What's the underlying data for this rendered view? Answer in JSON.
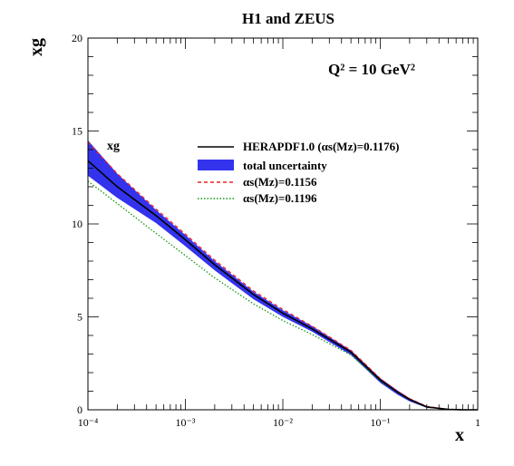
{
  "chart_data": {
    "type": "line",
    "title": "H1 and ZEUS",
    "annotation": "Q² = 10 GeV²",
    "curve_label": "xg",
    "xlabel": "x",
    "ylabel": "xg",
    "x_scale": "log",
    "xlim": [
      0.0001,
      1
    ],
    "ylim": [
      0,
      20
    ],
    "x_ticks": [
      {
        "value": 0.0001,
        "label": "10⁻⁴"
      },
      {
        "value": 0.001,
        "label": "10⁻³"
      },
      {
        "value": 0.01,
        "label": "10⁻²"
      },
      {
        "value": 0.1,
        "label": "10⁻¹"
      },
      {
        "value": 1,
        "label": "1"
      }
    ],
    "y_ticks": [
      0,
      5,
      10,
      15,
      20
    ],
    "grid": false,
    "legend_position": "upper-right",
    "colors": {
      "central": "#000000",
      "band": "#3333ee",
      "alpha_low": "#ee2222",
      "alpha_high": "#119911"
    },
    "series": [
      {
        "name": "HERAPDF1.0 (αs(Mz)=0.1176)",
        "style": "solid",
        "color": "#000000",
        "x": [
          0.0001,
          0.0002,
          0.0005,
          0.001,
          0.002,
          0.005,
          0.01,
          0.02,
          0.05,
          0.1,
          0.15,
          0.2,
          0.3,
          0.5,
          0.7,
          1.0
        ],
        "y": [
          13.4,
          12.0,
          10.45,
          9.15,
          7.8,
          6.2,
          5.2,
          4.35,
          3.1,
          1.6,
          0.95,
          0.55,
          0.15,
          0.02,
          0.0,
          0.0
        ]
      },
      {
        "name": "total uncertainty",
        "style": "band",
        "color": "#3333ee",
        "x": [
          0.0001,
          0.0002,
          0.0005,
          0.001,
          0.002,
          0.005,
          0.01,
          0.02,
          0.05,
          0.1,
          0.15,
          0.2,
          0.3,
          0.5,
          0.7,
          1.0
        ],
        "upper": [
          14.5,
          12.7,
          10.75,
          9.4,
          8.0,
          6.35,
          5.35,
          4.5,
          3.2,
          1.7,
          1.05,
          0.62,
          0.2,
          0.03,
          0.0,
          0.0
        ],
        "lower": [
          12.6,
          11.4,
          10.05,
          8.8,
          7.5,
          5.95,
          5.0,
          4.2,
          2.95,
          1.45,
          0.82,
          0.45,
          0.1,
          0.01,
          0.0,
          0.0
        ]
      },
      {
        "name": "αs(Mz)=0.1156",
        "style": "dashed",
        "color": "#ee2222",
        "x": [
          0.0001,
          0.0002,
          0.0005,
          0.001,
          0.002,
          0.005,
          0.01,
          0.02,
          0.05,
          0.1,
          0.15,
          0.2,
          0.3,
          0.5,
          0.7,
          1.0
        ],
        "y": [
          14.4,
          12.7,
          10.8,
          9.45,
          8.05,
          6.4,
          5.4,
          4.5,
          3.2,
          1.68,
          1.0,
          0.6,
          0.18,
          0.02,
          0.0,
          0.0
        ]
      },
      {
        "name": "αs(Mz)=0.1196",
        "style": "dotted",
        "color": "#119911",
        "x": [
          0.0001,
          0.0002,
          0.0005,
          0.001,
          0.002,
          0.005,
          0.01,
          0.02,
          0.05,
          0.1,
          0.15,
          0.2,
          0.3,
          0.5,
          0.7,
          1.0
        ],
        "y": [
          12.3,
          11.1,
          9.5,
          8.3,
          7.1,
          5.7,
          4.8,
          4.05,
          2.95,
          1.55,
          0.92,
          0.53,
          0.14,
          0.02,
          0.0,
          0.0
        ]
      }
    ]
  }
}
